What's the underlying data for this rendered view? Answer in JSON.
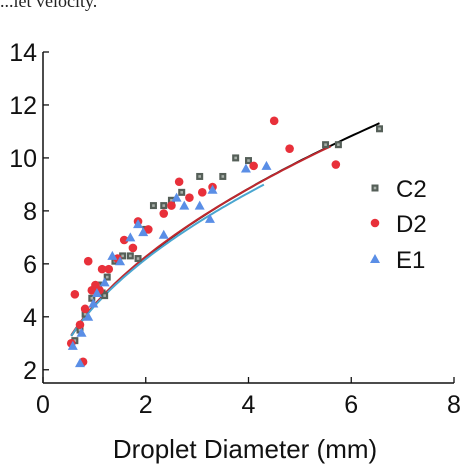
{
  "caption": "...let velocity.",
  "chart_data": {
    "type": "scatter",
    "title": "",
    "xlabel": "Droplet Diameter (mm)",
    "ylabel": "",
    "xlim": [
      0,
      8
    ],
    "ylim": [
      1.5,
      14
    ],
    "xticks": [
      "0",
      "2",
      "4",
      "6",
      "8"
    ],
    "yticks": [
      "2",
      "4",
      "6",
      "8",
      "10",
      "12",
      "14"
    ],
    "grid": false,
    "legend_position": "right",
    "series": [
      {
        "name": "C2",
        "marker": "square",
        "color": "#555f58",
        "points": [
          [
            0.62,
            3.1
          ],
          [
            0.72,
            3.5
          ],
          [
            0.82,
            4.1
          ],
          [
            0.95,
            4.7
          ],
          [
            1.08,
            5.2
          ],
          [
            1.15,
            4.9
          ],
          [
            1.2,
            4.8
          ],
          [
            1.25,
            5.5
          ],
          [
            1.4,
            6.1
          ],
          [
            1.55,
            6.3
          ],
          [
            1.7,
            6.3
          ],
          [
            1.85,
            6.2
          ],
          [
            2.0,
            7.3
          ],
          [
            2.15,
            8.2
          ],
          [
            2.35,
            8.2
          ],
          [
            2.5,
            8.4
          ],
          [
            2.7,
            8.7
          ],
          [
            3.05,
            9.3
          ],
          [
            3.5,
            9.3
          ],
          [
            3.75,
            10.0
          ],
          [
            4.0,
            9.9
          ],
          [
            5.5,
            10.5
          ],
          [
            5.75,
            10.5
          ],
          [
            6.55,
            11.1
          ]
        ]
      },
      {
        "name": "D2",
        "marker": "circle",
        "color": "#e8303a",
        "points": [
          [
            0.55,
            3.0
          ],
          [
            0.62,
            4.85
          ],
          [
            0.72,
            3.7
          ],
          [
            0.78,
            2.3
          ],
          [
            0.82,
            4.3
          ],
          [
            0.88,
            6.1
          ],
          [
            0.95,
            5.0
          ],
          [
            1.02,
            5.2
          ],
          [
            1.1,
            5.0
          ],
          [
            1.15,
            5.8
          ],
          [
            1.28,
            5.8
          ],
          [
            1.45,
            6.2
          ],
          [
            1.58,
            6.9
          ],
          [
            1.75,
            6.6
          ],
          [
            1.85,
            7.6
          ],
          [
            2.05,
            7.3
          ],
          [
            2.35,
            7.9
          ],
          [
            2.5,
            8.2
          ],
          [
            2.65,
            9.1
          ],
          [
            2.85,
            8.5
          ],
          [
            3.1,
            8.7
          ],
          [
            3.3,
            8.9
          ],
          [
            4.1,
            9.7
          ],
          [
            4.5,
            11.4
          ],
          [
            4.8,
            10.35
          ],
          [
            5.7,
            9.75
          ]
        ]
      },
      {
        "name": "E1",
        "marker": "triangle",
        "color": "#5a8ee6",
        "points": [
          [
            0.58,
            2.9
          ],
          [
            0.72,
            2.25
          ],
          [
            0.75,
            3.4
          ],
          [
            0.88,
            4.0
          ],
          [
            0.98,
            4.5
          ],
          [
            1.05,
            4.9
          ],
          [
            1.2,
            5.3
          ],
          [
            1.35,
            6.3
          ],
          [
            1.5,
            6.1
          ],
          [
            1.7,
            7.0
          ],
          [
            1.85,
            7.5
          ],
          [
            1.95,
            7.2
          ],
          [
            2.35,
            7.1
          ],
          [
            2.6,
            8.5
          ],
          [
            2.75,
            8.2
          ],
          [
            3.05,
            8.2
          ],
          [
            3.25,
            7.7
          ],
          [
            3.3,
            8.8
          ],
          [
            3.95,
            9.6
          ],
          [
            4.35,
            9.7
          ]
        ]
      }
    ],
    "fit_curves": [
      {
        "color": "#000000",
        "a": 4.42,
        "b": 0.5,
        "x_range": [
          0.55,
          6.55
        ]
      },
      {
        "color": "#c0282e",
        "a": 4.45,
        "b": 0.495,
        "x_range": [
          0.55,
          5.6
        ]
      },
      {
        "color": "#4aa6d0",
        "a": 4.4,
        "b": 0.49,
        "x_range": [
          0.55,
          4.3
        ]
      }
    ]
  }
}
